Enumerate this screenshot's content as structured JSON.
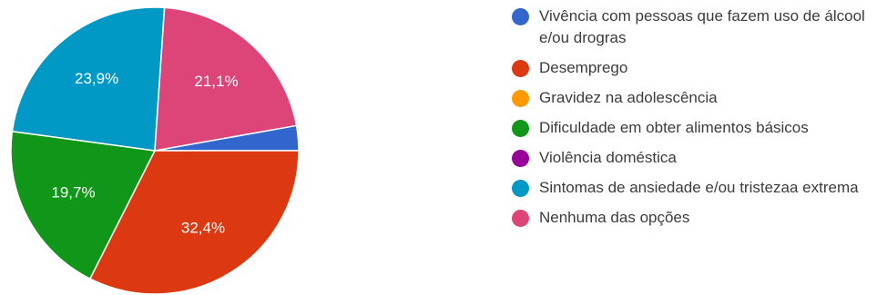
{
  "chart_data": {
    "type": "pie",
    "slices": [
      {
        "name": "Vivência com pessoas que fazem uso de álcool e/ou drogras",
        "value": 2.8,
        "label": "",
        "color": "#3366cc"
      },
      {
        "name": "Desemprego",
        "value": 32.4,
        "label": "32,4%",
        "color": "#dc3912"
      },
      {
        "name": "Gravidez na adolescência",
        "value": 0,
        "label": "",
        "color": "#ff9900"
      },
      {
        "name": "Dificuldade em obter alimentos básicos",
        "value": 19.7,
        "label": "19,7%",
        "color": "#109618"
      },
      {
        "name": "Violência doméstica",
        "value": 0,
        "label": "",
        "color": "#990099"
      },
      {
        "name": "Sintomas de ansiedade e/ou tristezaa extrema",
        "value": 23.9,
        "label": "23,9%",
        "color": "#0099c6"
      },
      {
        "name": "Nenhuma das opções",
        "value": 21.1,
        "label": "21,1%",
        "color": "#dd4477"
      }
    ],
    "legend_position": "right"
  }
}
